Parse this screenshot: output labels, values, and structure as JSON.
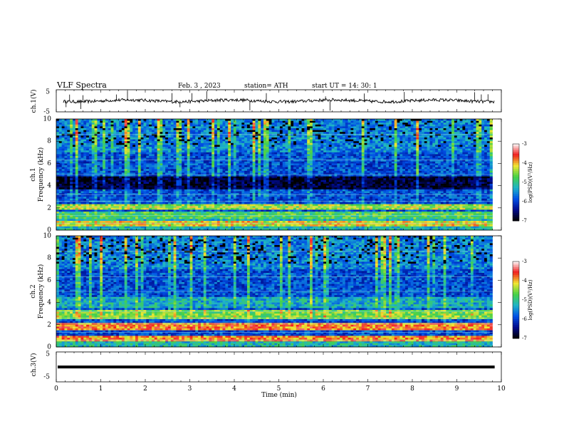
{
  "header": {
    "title": "VLF  Spectra",
    "date": "Feb. 3   , 2023",
    "station": "station= ATH",
    "start": "start  UT  =    14: 30: 1"
  },
  "colors": {
    "colormap": [
      "#000000",
      "#000a8c",
      "#0050e6",
      "#1eb4c8",
      "#46d246",
      "#f0e632",
      "#f01e1e",
      "#ffffff"
    ]
  },
  "chart_data": [
    {
      "type": "line",
      "panel": "ch1-waveform",
      "ylabel": "ch.1(V)",
      "ylim": [
        -5,
        5
      ],
      "yticks": [
        "5",
        "-5"
      ],
      "xlim": [
        0,
        10
      ],
      "baseline": 0,
      "series": [
        {
          "values_summary": "noisy trace near 0 V with sparse spikes to about ±3 V"
        }
      ],
      "spike_times_min": [
        0.22,
        0.3,
        0.55,
        0.6,
        1.35,
        1.6,
        2.6,
        2.78,
        3.05,
        3.38,
        4.35,
        4.72,
        6.05,
        6.15,
        6.92,
        7.82,
        9.4,
        9.55,
        9.7
      ]
    },
    {
      "type": "heatmap",
      "panel": "ch1-spectrogram",
      "ylabel": "ch.1\nFrequency  (kHz)",
      "ylim": [
        0,
        10
      ],
      "yticks": [
        "0",
        "2",
        "4",
        "6",
        "8",
        "10"
      ],
      "xlim": [
        0,
        9.8
      ],
      "colorbar": {
        "label": "log(PSD)(V²/Hz)",
        "range": [
          -7,
          -3
        ],
        "ticks": [
          "-3",
          "-4",
          "-5",
          "-6",
          "-7"
        ]
      },
      "bands_khz": [
        [
          0.3,
          0.8,
          -4.2
        ],
        [
          1.0,
          1.6,
          -4.8
        ],
        [
          1.8,
          2.3,
          -4.4
        ],
        [
          3.6,
          4.9,
          -6.8
        ]
      ]
    },
    {
      "type": "heatmap",
      "panel": "ch2-spectrogram",
      "ylabel": "ch.2\nFrequency  (kHz)",
      "ylim": [
        0,
        10
      ],
      "yticks": [
        "0",
        "2",
        "4",
        "6",
        "8",
        "10"
      ],
      "xlim": [
        0,
        9.8
      ],
      "colorbar": {
        "label": "log(PSD)(V²/Hz)",
        "range": [
          -7,
          -3
        ],
        "ticks": [
          "-3",
          "-4",
          "-5",
          "-6",
          "-7"
        ]
      },
      "bands_khz": [
        [
          0.5,
          1.0,
          -3.9
        ],
        [
          1.5,
          2.1,
          -3.8
        ],
        [
          2.5,
          3.3,
          -4.6
        ],
        [
          3.5,
          4.5,
          -5.3
        ]
      ]
    },
    {
      "type": "line",
      "panel": "ch3-waveform",
      "ylabel": "ch.3(V)",
      "ylim": [
        -5,
        5
      ],
      "yticks": [
        "5",
        "-5"
      ],
      "xlim": [
        0,
        10
      ],
      "series": [
        {
          "values_summary": "flat line",
          "level_v": -0.6
        }
      ]
    }
  ],
  "xaxis": {
    "label": "Time  (min)",
    "ticks": [
      "0",
      "1",
      "2",
      "3",
      "4",
      "5",
      "6",
      "7",
      "8",
      "9",
      "10"
    ]
  }
}
